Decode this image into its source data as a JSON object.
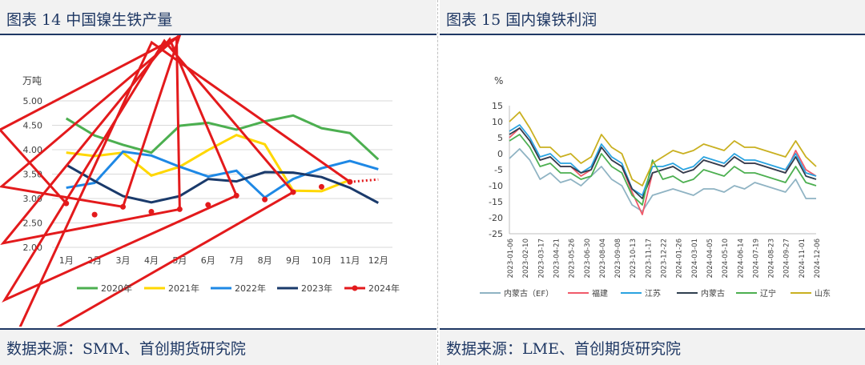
{
  "left": {
    "title": "图表  14 中国镍生铁产量",
    "source": "数据来源：SMM、首创期货研究院",
    "chart_data": {
      "type": "line",
      "unit_label": "万吨",
      "categories": [
        "1月",
        "2月",
        "3月",
        "4月",
        "5月",
        "6月",
        "7月",
        "8月",
        "9月",
        "10月",
        "11月",
        "12月"
      ],
      "ylim": [
        2.0,
        5.0
      ],
      "yticks": [
        "5.00",
        "4.50",
        "4.00",
        "3.50",
        "3.00",
        "2.50",
        "2.00"
      ],
      "grid": true,
      "legend_position": "bottom",
      "series": [
        {
          "name": "2020年",
          "color": "#4caf50",
          "values": [
            4.64,
            4.29,
            4.1,
            3.94,
            4.49,
            4.55,
            4.41,
            4.58,
            4.7,
            4.44,
            4.34,
            3.8
          ]
        },
        {
          "name": "2021年",
          "color": "#ffd700",
          "values": [
            3.94,
            3.87,
            3.94,
            3.47,
            3.65,
            3.99,
            4.3,
            4.11,
            3.16,
            3.15,
            3.38,
            null
          ]
        },
        {
          "name": "2022年",
          "color": "#1e88e5",
          "values": [
            3.22,
            3.32,
            3.96,
            3.88,
            3.65,
            3.45,
            3.57,
            3.02,
            3.4,
            3.62,
            3.77,
            3.6
          ]
        },
        {
          "name": "2023年",
          "color": "#1a3a6b",
          "values": [
            3.69,
            3.36,
            3.05,
            2.92,
            3.05,
            3.4,
            3.35,
            3.54,
            3.53,
            3.44,
            3.22,
            2.91
          ]
        },
        {
          "name": "2024年",
          "color": "#e31a1c",
          "values": [
            2.9,
            2.67,
            2.83,
            2.73,
            2.78,
            2.87,
            3.06,
            2.98,
            3.13,
            3.24,
            3.34,
            3.39
          ]
        }
      ]
    }
  },
  "right": {
    "title": "图表  15 国内镍铁利润",
    "source": "数据来源：LME、首创期货研究院",
    "chart_data": {
      "type": "line",
      "unit_label": "%",
      "ylim": [
        -25,
        15
      ],
      "yticks": [
        "15",
        "10",
        "5",
        "0",
        "-5",
        "-10",
        "-15",
        "-20",
        "-25"
      ],
      "grid": true,
      "legend_position": "bottom",
      "x_labels": [
        "2023-01-06",
        "2023-02-10",
        "2023-03-17",
        "2023-04-21",
        "2023-05-26",
        "2023-06-30",
        "2023-08-04",
        "2023-09-08",
        "2023-10-13",
        "2023-11-17",
        "2023-12-22",
        "2024-01-26",
        "2024-03-01",
        "2024-04-05",
        "2024-05-10",
        "2024-06-14",
        "2024-07-19",
        "2024-08-23",
        "2024-09-27",
        "2024-11-01",
        "2024-12-06"
      ],
      "series": [
        {
          "name": "内蒙古（EF）",
          "color": "#8fb3c3",
          "values": [
            -1.5,
            1.5,
            -2,
            -8,
            -6,
            -9,
            -8,
            -10,
            -7,
            -4,
            -8,
            -10,
            -16,
            -18,
            -13,
            -12,
            -11,
            -12,
            -13,
            -11,
            -11,
            -12,
            -10,
            -11,
            -9,
            -10,
            -11,
            -12,
            -8,
            -14,
            -14
          ]
        },
        {
          "name": "福建",
          "color": "#f05a6a",
          "values": [
            5,
            8,
            4,
            -2,
            -1,
            -4,
            -4,
            -7,
            -5,
            2,
            -2,
            -4,
            -12,
            -19,
            -6,
            -5,
            -4,
            -6,
            -5,
            -2,
            -3,
            -4,
            -1,
            -3,
            -3,
            -4,
            -5,
            -6,
            1,
            -5,
            -7
          ]
        },
        {
          "name": "江苏",
          "color": "#2aa3e0",
          "values": [
            7,
            9,
            5,
            -1,
            0,
            -3,
            -3,
            -6,
            -4,
            3,
            -1,
            -3,
            -11,
            -13,
            -4,
            -4,
            -3,
            -5,
            -4,
            -1,
            -2,
            -3,
            0,
            -2,
            -2,
            -3,
            -4,
            -5,
            0,
            -6,
            -7
          ]
        },
        {
          "name": "内蒙古",
          "color": "#2f3f4f",
          "values": [
            6,
            8,
            4,
            -2,
            -1,
            -4,
            -4,
            -6,
            -5,
            2,
            -2,
            -4,
            -11,
            -14,
            -6,
            -5,
            -4,
            -6,
            -5,
            -2,
            -3,
            -4,
            -1,
            -3,
            -3,
            -4,
            -5,
            -6,
            -1,
            -7,
            -8
          ]
        },
        {
          "name": "辽宁",
          "color": "#4caf50",
          "values": [
            4,
            6,
            2,
            -4,
            -3,
            -6,
            -6,
            -8,
            -7,
            0,
            -4,
            -6,
            -13,
            -16,
            -2,
            -8,
            -7,
            -9,
            -8,
            -5,
            -6,
            -7,
            -4,
            -6,
            -6,
            -7,
            -8,
            -9,
            -4,
            -9,
            -10
          ]
        },
        {
          "name": "山东",
          "color": "#c9b020",
          "values": [
            10,
            13,
            8,
            2,
            2,
            -1,
            0,
            -3,
            -1,
            6,
            2,
            0,
            -8,
            -10,
            -3,
            -1,
            1,
            0,
            1,
            3,
            2,
            1,
            4,
            2,
            2,
            1,
            0,
            -1,
            4,
            -1,
            -4
          ]
        }
      ]
    }
  }
}
